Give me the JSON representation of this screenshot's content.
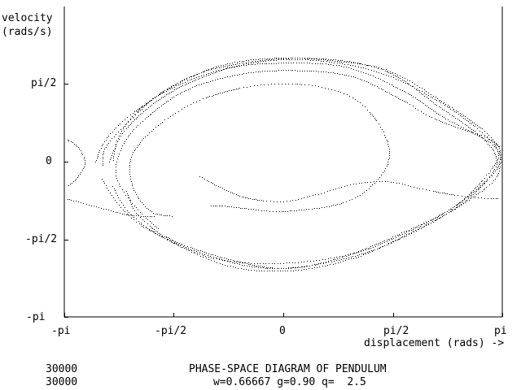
{
  "app": {
    "screen_background": "#ffffff",
    "ink_color": "#000000"
  },
  "chart_data": {
    "type": "scatter",
    "title": "PHASE-SPACE DIAGRAM OF PENDULUM",
    "params_line": "w=0.66667 g=0.90 q=  2.5",
    "counter_lines": [
      "30000",
      "30000"
    ],
    "xlabel": "displacement (rads) ->",
    "ylabel_lines": [
      "velocity",
      "(rads/s)"
    ],
    "xlim": [
      -3.14159,
      3.14159
    ],
    "ylim": [
      -3.14159,
      3.14159
    ],
    "x_ticks": [
      {
        "value": -3.14159,
        "label": "-pi"
      },
      {
        "value": -1.5708,
        "label": "-pi/2"
      },
      {
        "value": 0,
        "label": "0"
      },
      {
        "value": 1.5708,
        "label": "pi/2"
      },
      {
        "value": 3.14159,
        "label": "pi"
      }
    ],
    "y_ticks": [
      {
        "value": 1.5708,
        "label": "pi/2"
      },
      {
        "value": 0,
        "label": "0"
      },
      {
        "value": -1.5708,
        "label": "-pi/2"
      },
      {
        "value": -3.14159,
        "label": "-pi"
      }
    ],
    "grid": false,
    "marker_color": "#000000",
    "trajectory_points": 30000,
    "series": [
      {
        "points": [
          [
            -1.6,
            -1.1
          ],
          [
            -1.9,
            -1.0
          ],
          [
            -2.15,
            -0.55
          ],
          [
            -2.2,
            0.0
          ],
          [
            -2.05,
            0.4
          ],
          [
            -1.7,
            0.85
          ],
          [
            -1.2,
            1.25
          ],
          [
            -0.6,
            1.5
          ],
          [
            0.0,
            1.58
          ],
          [
            0.6,
            1.5
          ],
          [
            1.1,
            1.2
          ],
          [
            1.45,
            0.55
          ],
          [
            1.5,
            0.0
          ],
          [
            1.25,
            -0.5
          ],
          [
            0.8,
            -0.85
          ],
          [
            0.0,
            -1.0
          ],
          [
            -0.5,
            -0.95
          ],
          [
            -0.8,
            -0.9
          ],
          [
            -1.0,
            -0.88
          ],
          [
            -1.05,
            -0.9
          ]
        ]
      },
      {
        "points": [
          [
            -1.2,
            -0.3
          ],
          [
            -0.6,
            -0.7
          ],
          [
            0.0,
            -0.8
          ],
          [
            0.5,
            -0.65
          ],
          [
            1.0,
            -0.45
          ],
          [
            1.5,
            -0.4
          ],
          [
            2.0,
            -0.55
          ],
          [
            2.6,
            -0.7
          ],
          [
            3.1,
            -0.75
          ]
        ]
      },
      {
        "points": [
          [
            -3.1,
            -0.75
          ],
          [
            -2.7,
            -0.9
          ],
          [
            -2.3,
            -1.05
          ],
          [
            -2.0,
            -1.1
          ],
          [
            -1.85,
            -1.1
          ]
        ]
      },
      {
        "points": [
          [
            -3.1,
            0.45
          ],
          [
            -2.95,
            0.3
          ],
          [
            -2.85,
            0.0
          ],
          [
            -2.95,
            -0.3
          ],
          [
            -3.1,
            -0.5
          ]
        ]
      },
      {
        "points": [
          [
            -2.7,
            0.0
          ],
          [
            -2.55,
            0.45
          ],
          [
            -2.2,
            0.95
          ],
          [
            -1.6,
            1.5
          ],
          [
            -0.8,
            1.9
          ],
          [
            0.0,
            2.0
          ],
          [
            0.9,
            1.92
          ],
          [
            1.7,
            1.45
          ],
          [
            2.3,
            0.9
          ],
          [
            3.0,
            0.35
          ],
          [
            3.1,
            0.0
          ],
          [
            3.0,
            -0.4
          ],
          [
            2.4,
            -1.0
          ],
          [
            1.6,
            -1.6
          ],
          [
            0.9,
            -1.95
          ],
          [
            0.0,
            -2.15
          ],
          [
            -0.7,
            -2.0
          ],
          [
            -1.4,
            -1.7
          ],
          [
            -1.7,
            -1.5
          ]
        ]
      },
      {
        "points": [
          [
            -1.8,
            -1.35
          ],
          [
            -2.1,
            -0.95
          ],
          [
            -2.4,
            -0.3
          ],
          [
            -2.3,
            0.35
          ],
          [
            -2.0,
            0.85
          ],
          [
            -1.4,
            1.45
          ],
          [
            -0.6,
            1.78
          ],
          [
            0.2,
            1.85
          ],
          [
            1.0,
            1.72
          ],
          [
            1.7,
            1.25
          ],
          [
            2.2,
            0.85
          ],
          [
            2.9,
            0.5
          ],
          [
            3.1,
            0.3
          ]
        ]
      },
      {
        "points": [
          [
            -2.25,
            -0.6
          ],
          [
            -2.1,
            -1.05
          ],
          [
            -1.6,
            -1.6
          ],
          [
            -0.7,
            -2.05
          ],
          [
            0.1,
            -2.15
          ],
          [
            0.9,
            -1.9
          ],
          [
            1.6,
            -1.5
          ],
          [
            2.4,
            -0.95
          ],
          [
            2.95,
            -0.3
          ],
          [
            3.05,
            0.1
          ],
          [
            2.8,
            0.55
          ],
          [
            2.2,
            1.15
          ],
          [
            1.6,
            1.75
          ],
          [
            1.0,
            2.02
          ],
          [
            0.2,
            2.1
          ],
          [
            -0.6,
            2.0
          ],
          [
            -1.3,
            1.75
          ],
          [
            -2.0,
            1.15
          ],
          [
            -2.35,
            0.55
          ],
          [
            -2.45,
            0.0
          ]
        ]
      },
      {
        "points": [
          [
            -2.45,
            -0.5
          ],
          [
            -2.2,
            -1.05
          ],
          [
            -1.7,
            -1.55
          ],
          [
            -0.8,
            -2.1
          ],
          [
            0.1,
            -2.2
          ],
          [
            1.0,
            -1.95
          ],
          [
            1.8,
            -1.45
          ],
          [
            2.5,
            -0.9
          ],
          [
            3.0,
            -0.25
          ],
          [
            3.12,
            0.15
          ],
          [
            2.9,
            0.6
          ],
          [
            2.3,
            1.2
          ],
          [
            1.5,
            1.85
          ],
          [
            0.7,
            2.05
          ],
          [
            -0.1,
            2.1
          ],
          [
            -0.9,
            1.95
          ],
          [
            -1.7,
            1.45
          ],
          [
            -2.2,
            0.85
          ],
          [
            -2.55,
            0.3
          ],
          [
            -2.6,
            -0.1
          ]
        ]
      },
      {
        "points": [
          [
            -2.6,
            -0.35
          ],
          [
            -2.35,
            -0.9
          ],
          [
            -1.9,
            -1.4
          ],
          [
            -1.0,
            -1.95
          ],
          [
            0.0,
            -2.05
          ],
          [
            1.0,
            -1.85
          ],
          [
            1.8,
            -1.4
          ],
          [
            2.5,
            -0.85
          ],
          [
            2.95,
            -0.2
          ],
          [
            3.08,
            0.2
          ],
          [
            2.8,
            0.65
          ],
          [
            2.2,
            1.25
          ],
          [
            1.4,
            1.8
          ],
          [
            0.5,
            2.05
          ],
          [
            -0.4,
            2.02
          ],
          [
            -1.2,
            1.7
          ],
          [
            -1.8,
            1.25
          ],
          [
            -2.3,
            0.6
          ],
          [
            -2.5,
            0.0
          ]
        ]
      }
    ]
  }
}
